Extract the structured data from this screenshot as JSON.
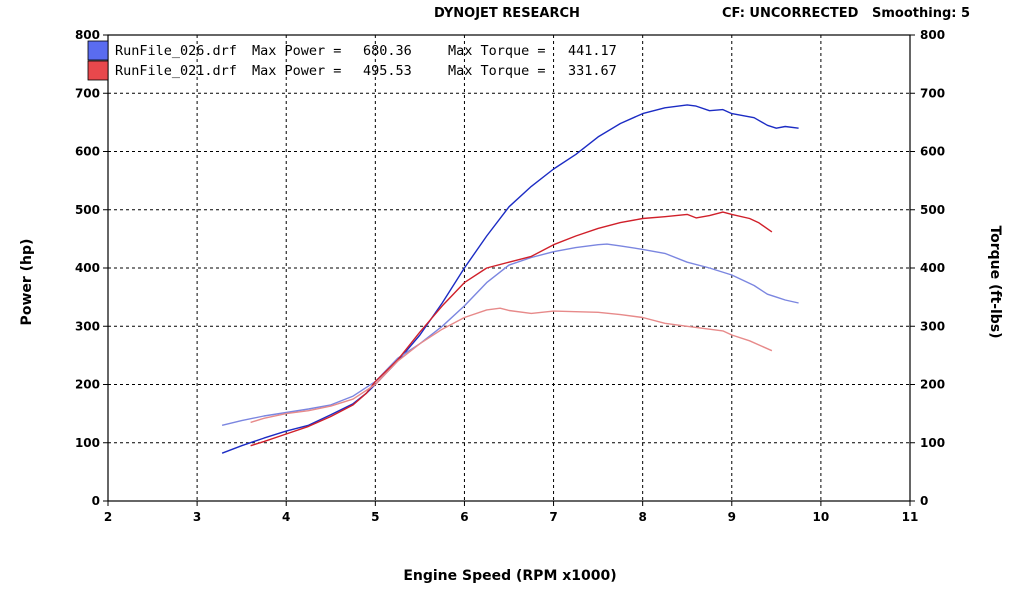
{
  "header": {
    "title": "DYNOJET RESEARCH",
    "cf": "CF: UNCORRECTED",
    "smoothing": "Smoothing: 5"
  },
  "chart_data": {
    "type": "line",
    "xlabel": "Engine Speed (RPM x1000)",
    "ylabel_left": "Power (hp)",
    "ylabel_right": "Torque (ft-lbs)",
    "xlim": [
      2,
      11
    ],
    "ylim": [
      0,
      800
    ],
    "xticks": [
      "2",
      "3",
      "4",
      "5",
      "6",
      "7",
      "8",
      "9",
      "10",
      "11"
    ],
    "yticks_left": [
      "0",
      "100",
      "200",
      "300",
      "400",
      "500",
      "600",
      "700",
      "800"
    ],
    "yticks_right": [
      "0",
      "100",
      "200",
      "300",
      "400",
      "500",
      "600",
      "700",
      "800"
    ],
    "grid": true,
    "legend_position": "top-left",
    "runs": [
      {
        "file": "RunFile_026.drf",
        "max_power_label": "Max Power =",
        "max_power": "680.36",
        "max_torque_label": "Max Torque =",
        "max_torque": "441.17",
        "color": "#1c2cc4",
        "light_color": "#7b86e0"
      },
      {
        "file": "RunFile_021.drf",
        "max_power_label": "Max Power =",
        "max_power": "495.53",
        "max_torque_label": "Max Torque =",
        "max_torque": "331.67",
        "color": "#d0202a",
        "light_color": "#e78a8a"
      }
    ],
    "series": [
      {
        "run": "RunFile_026.drf",
        "measure": "power",
        "color": "#1c2cc4",
        "x": [
          3.28,
          3.5,
          3.75,
          4.0,
          4.25,
          4.5,
          4.75,
          4.9,
          5.0,
          5.25,
          5.5,
          5.75,
          6.0,
          6.25,
          6.5,
          6.75,
          7.0,
          7.25,
          7.5,
          7.75,
          8.0,
          8.25,
          8.5,
          8.6,
          8.75,
          8.9,
          9.0,
          9.25,
          9.4,
          9.5,
          9.6,
          9.75
        ],
        "y": [
          82,
          95,
          108,
          120,
          130,
          148,
          167,
          185,
          200,
          240,
          285,
          340,
          400,
          455,
          505,
          540,
          570,
          595,
          625,
          648,
          665,
          675,
          680,
          678,
          670,
          672,
          665,
          658,
          645,
          640,
          643,
          640
        ]
      },
      {
        "run": "RunFile_026.drf",
        "measure": "torque",
        "color": "#7b86e0",
        "x": [
          3.28,
          3.5,
          3.75,
          4.0,
          4.25,
          4.5,
          4.75,
          5.0,
          5.25,
          5.5,
          5.75,
          6.0,
          6.25,
          6.5,
          6.75,
          7.0,
          7.25,
          7.5,
          7.6,
          7.75,
          8.0,
          8.25,
          8.5,
          8.75,
          9.0,
          9.25,
          9.4,
          9.5,
          9.6,
          9.75
        ],
        "y": [
          130,
          138,
          146,
          152,
          158,
          165,
          180,
          205,
          245,
          270,
          300,
          335,
          375,
          405,
          418,
          428,
          435,
          440,
          441,
          438,
          432,
          425,
          410,
          400,
          388,
          370,
          355,
          350,
          345,
          340
        ]
      },
      {
        "run": "RunFile_021.drf",
        "measure": "power",
        "color": "#d0202a",
        "x": [
          3.6,
          3.75,
          4.0,
          4.25,
          4.5,
          4.75,
          4.9,
          5.0,
          5.25,
          5.5,
          5.75,
          6.0,
          6.25,
          6.5,
          6.75,
          7.0,
          7.25,
          7.5,
          7.75,
          8.0,
          8.25,
          8.5,
          8.6,
          8.75,
          8.9,
          9.0,
          9.2,
          9.3,
          9.45
        ],
        "y": [
          95,
          102,
          115,
          128,
          145,
          165,
          185,
          205,
          242,
          290,
          335,
          375,
          400,
          410,
          420,
          440,
          455,
          468,
          478,
          485,
          488,
          492,
          486,
          490,
          496,
          492,
          485,
          478,
          462
        ]
      },
      {
        "run": "RunFile_021.drf",
        "measure": "torque",
        "color": "#e78a8a",
        "x": [
          3.6,
          3.75,
          4.0,
          4.25,
          4.5,
          4.75,
          5.0,
          5.25,
          5.5,
          5.75,
          6.0,
          6.25,
          6.4,
          6.5,
          6.75,
          7.0,
          7.25,
          7.5,
          7.75,
          8.0,
          8.25,
          8.5,
          8.75,
          8.9,
          9.0,
          9.2,
          9.45
        ],
        "y": [
          135,
          142,
          150,
          155,
          163,
          175,
          200,
          240,
          270,
          295,
          315,
          328,
          331,
          327,
          322,
          326,
          325,
          324,
          320,
          315,
          305,
          300,
          295,
          292,
          285,
          275,
          258
        ]
      }
    ]
  }
}
